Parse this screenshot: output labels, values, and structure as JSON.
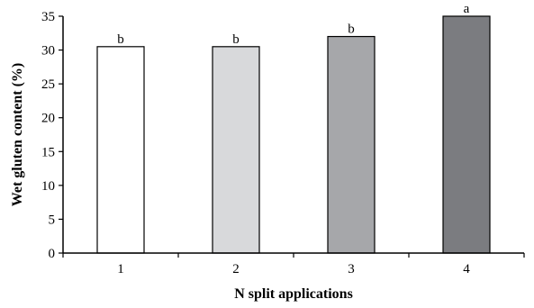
{
  "chart_data": {
    "type": "bar",
    "title": "",
    "xlabel": "N split applications",
    "ylabel": "Wet gluten content (%)",
    "categories": [
      "1",
      "2",
      "3",
      "4"
    ],
    "values": [
      30.5,
      30.5,
      32.0,
      35.0
    ],
    "data_labels": [
      "b",
      "b",
      "b",
      "a"
    ],
    "bar_colors": [
      "#ffffff",
      "#d8d9db",
      "#a6a7aa",
      "#7b7c80"
    ],
    "ylim": [
      0,
      35
    ],
    "yticks": [
      0,
      5,
      10,
      15,
      20,
      25,
      30,
      35
    ],
    "ytick_labels": [
      "0",
      "5",
      "10",
      "15",
      "20",
      "25",
      "30",
      "35"
    ],
    "grid": false,
    "legend": "none"
  }
}
